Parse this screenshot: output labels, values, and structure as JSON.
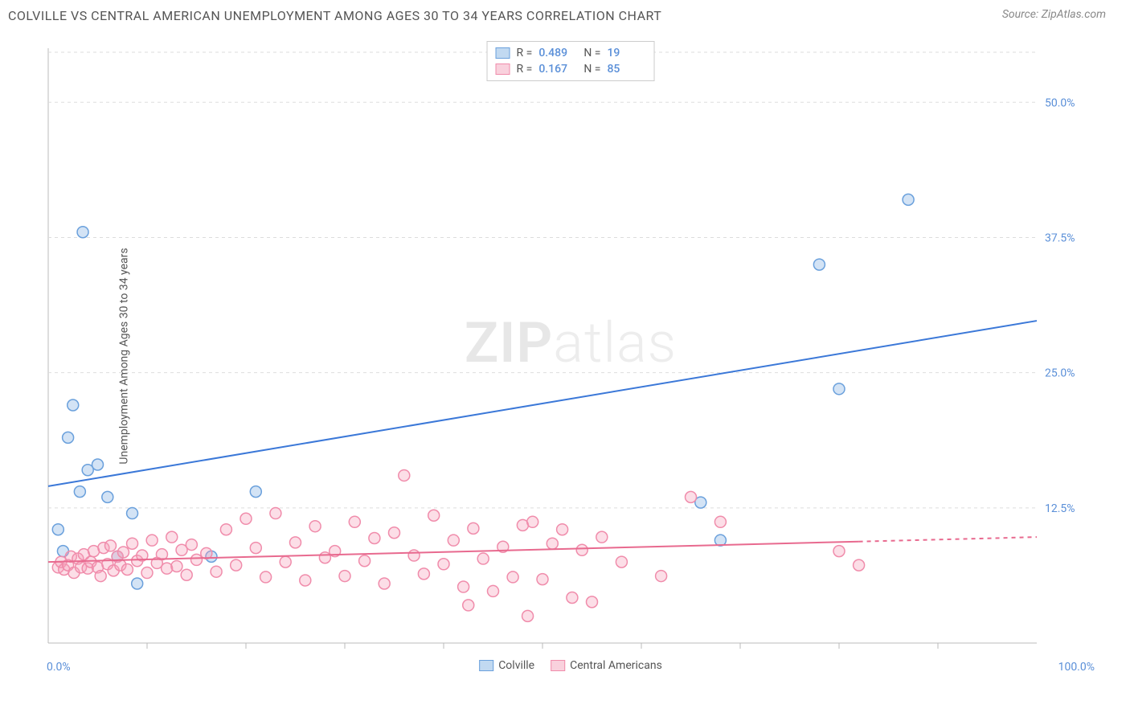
{
  "header": {
    "title": "COLVILLE VS CENTRAL AMERICAN UNEMPLOYMENT AMONG AGES 30 TO 34 YEARS CORRELATION CHART",
    "source": "Source: ZipAtlas.com"
  },
  "watermark": {
    "zip": "ZIP",
    "atlas": "atlas"
  },
  "chart": {
    "type": "scatter",
    "ylabel": "Unemployment Among Ages 30 to 34 years",
    "background_color": "#ffffff",
    "grid_color": "#dddddd",
    "axis_color": "#bbbbbb",
    "xlim": [
      0,
      100
    ],
    "ylim": [
      0,
      55
    ],
    "x_axis_labels": {
      "min": "0.0%",
      "max": "100.0%"
    },
    "y_ticks": [
      {
        "value": 12.5,
        "label": "12.5%"
      },
      {
        "value": 25.0,
        "label": "25.0%"
      },
      {
        "value": 37.5,
        "label": "37.5%"
      },
      {
        "value": 50.0,
        "label": "50.0%"
      }
    ],
    "y_tick_label_color": "#5a8fd8",
    "x_minor_ticks": [
      10,
      20,
      30,
      40,
      50,
      60,
      70,
      80,
      90
    ],
    "marker_radius": 7,
    "marker_stroke_width": 1.5,
    "trend_line_width": 2,
    "series": [
      {
        "name": "Colville",
        "color_fill": "rgba(130,175,225,0.35)",
        "color_stroke": "#6aa0dc",
        "trend_color": "#3b78d8",
        "trend": {
          "x1": 0,
          "y1": 14.5,
          "x2": 100,
          "y2": 29.8,
          "dash_after_x": null
        },
        "stats": {
          "R_label": "R =",
          "R": "0.489",
          "N_label": "N =",
          "N": "19"
        },
        "points": [
          [
            1,
            10.5
          ],
          [
            1.5,
            8.5
          ],
          [
            2,
            19
          ],
          [
            2.5,
            22
          ],
          [
            3.2,
            14
          ],
          [
            3.5,
            38
          ],
          [
            4,
            16
          ],
          [
            5,
            16.5
          ],
          [
            6,
            13.5
          ],
          [
            7,
            8
          ],
          [
            8.5,
            12
          ],
          [
            9,
            5.5
          ],
          [
            16.5,
            8
          ],
          [
            21,
            14
          ],
          [
            66,
            13
          ],
          [
            68,
            9.5
          ],
          [
            78,
            35
          ],
          [
            80,
            23.5
          ],
          [
            87,
            41
          ]
        ]
      },
      {
        "name": "Central Americans",
        "color_fill": "rgba(245,160,185,0.35)",
        "color_stroke": "#f08cab",
        "trend_color": "#e86a8f",
        "trend": {
          "x1": 0,
          "y1": 7.5,
          "x2": 100,
          "y2": 9.8,
          "dash_after_x": 82
        },
        "stats": {
          "R_label": "R =",
          "R": "0.167",
          "N_label": "N =",
          "N": "85"
        },
        "points": [
          [
            1,
            7
          ],
          [
            1.3,
            7.5
          ],
          [
            1.6,
            6.8
          ],
          [
            2,
            7.2
          ],
          [
            2.3,
            8
          ],
          [
            2.6,
            6.5
          ],
          [
            3,
            7.8
          ],
          [
            3.3,
            7
          ],
          [
            3.6,
            8.2
          ],
          [
            4,
            6.9
          ],
          [
            4.3,
            7.5
          ],
          [
            4.6,
            8.5
          ],
          [
            5,
            7
          ],
          [
            5.3,
            6.2
          ],
          [
            5.6,
            8.8
          ],
          [
            6,
            7.3
          ],
          [
            6.3,
            9
          ],
          [
            6.6,
            6.7
          ],
          [
            7,
            8
          ],
          [
            7.3,
            7.2
          ],
          [
            7.6,
            8.4
          ],
          [
            8,
            6.8
          ],
          [
            8.5,
            9.2
          ],
          [
            9,
            7.6
          ],
          [
            9.5,
            8.1
          ],
          [
            10,
            6.5
          ],
          [
            10.5,
            9.5
          ],
          [
            11,
            7.4
          ],
          [
            11.5,
            8.2
          ],
          [
            12,
            6.9
          ],
          [
            12.5,
            9.8
          ],
          [
            13,
            7.1
          ],
          [
            13.5,
            8.6
          ],
          [
            14,
            6.3
          ],
          [
            14.5,
            9.1
          ],
          [
            15,
            7.7
          ],
          [
            16,
            8.3
          ],
          [
            17,
            6.6
          ],
          [
            18,
            10.5
          ],
          [
            19,
            7.2
          ],
          [
            20,
            11.5
          ],
          [
            21,
            8.8
          ],
          [
            22,
            6.1
          ],
          [
            23,
            12
          ],
          [
            24,
            7.5
          ],
          [
            25,
            9.3
          ],
          [
            26,
            5.8
          ],
          [
            27,
            10.8
          ],
          [
            28,
            7.9
          ],
          [
            29,
            8.5
          ],
          [
            30,
            6.2
          ],
          [
            31,
            11.2
          ],
          [
            32,
            7.6
          ],
          [
            33,
            9.7
          ],
          [
            34,
            5.5
          ],
          [
            35,
            10.2
          ],
          [
            36,
            15.5
          ],
          [
            37,
            8.1
          ],
          [
            38,
            6.4
          ],
          [
            39,
            11.8
          ],
          [
            40,
            7.3
          ],
          [
            41,
            9.5
          ],
          [
            42,
            5.2
          ],
          [
            42.5,
            3.5
          ],
          [
            43,
            10.6
          ],
          [
            44,
            7.8
          ],
          [
            45,
            4.8
          ],
          [
            46,
            8.9
          ],
          [
            47,
            6.1
          ],
          [
            48,
            10.9
          ],
          [
            48.5,
            2.5
          ],
          [
            49,
            11.2
          ],
          [
            50,
            5.9
          ],
          [
            51,
            9.2
          ],
          [
            52,
            10.5
          ],
          [
            53,
            4.2
          ],
          [
            54,
            8.6
          ],
          [
            55,
            3.8
          ],
          [
            56,
            9.8
          ],
          [
            58,
            7.5
          ],
          [
            62,
            6.2
          ],
          [
            65,
            13.5
          ],
          [
            68,
            11.2
          ],
          [
            80,
            8.5
          ],
          [
            82,
            7.2
          ]
        ]
      }
    ],
    "legend_bottom": [
      {
        "swatch": "blue",
        "label": "Colville"
      },
      {
        "swatch": "pink",
        "label": "Central Americans"
      }
    ]
  }
}
